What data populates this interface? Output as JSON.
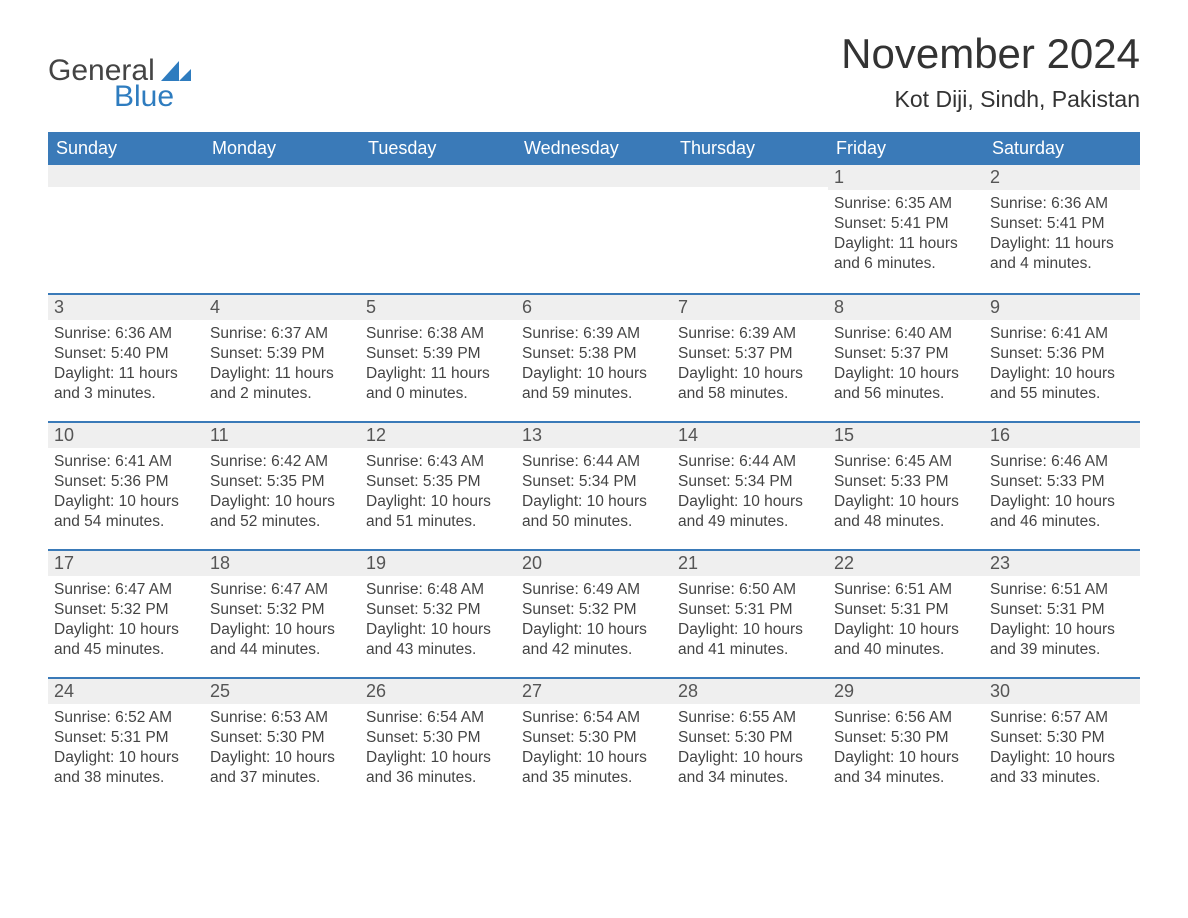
{
  "logo": {
    "general": "General",
    "blue": "Blue",
    "shape_color": "#2e7cbf"
  },
  "title": "November 2024",
  "location": "Kot Diji, Sindh, Pakistan",
  "colors": {
    "header_bg": "#3a7ab8",
    "header_text": "#ffffff",
    "daynum_bg": "#efefef",
    "border_top": "#3a7ab8",
    "body_text": "#444444",
    "title_text": "#333333"
  },
  "weekdays": [
    "Sunday",
    "Monday",
    "Tuesday",
    "Wednesday",
    "Thursday",
    "Friday",
    "Saturday"
  ],
  "weeks": [
    [
      null,
      null,
      null,
      null,
      null,
      {
        "n": "1",
        "sunrise": "6:35 AM",
        "sunset": "5:41 PM",
        "daylight": "11 hours and 6 minutes."
      },
      {
        "n": "2",
        "sunrise": "6:36 AM",
        "sunset": "5:41 PM",
        "daylight": "11 hours and 4 minutes."
      }
    ],
    [
      {
        "n": "3",
        "sunrise": "6:36 AM",
        "sunset": "5:40 PM",
        "daylight": "11 hours and 3 minutes."
      },
      {
        "n": "4",
        "sunrise": "6:37 AM",
        "sunset": "5:39 PM",
        "daylight": "11 hours and 2 minutes."
      },
      {
        "n": "5",
        "sunrise": "6:38 AM",
        "sunset": "5:39 PM",
        "daylight": "11 hours and 0 minutes."
      },
      {
        "n": "6",
        "sunrise": "6:39 AM",
        "sunset": "5:38 PM",
        "daylight": "10 hours and 59 minutes."
      },
      {
        "n": "7",
        "sunrise": "6:39 AM",
        "sunset": "5:37 PM",
        "daylight": "10 hours and 58 minutes."
      },
      {
        "n": "8",
        "sunrise": "6:40 AM",
        "sunset": "5:37 PM",
        "daylight": "10 hours and 56 minutes."
      },
      {
        "n": "9",
        "sunrise": "6:41 AM",
        "sunset": "5:36 PM",
        "daylight": "10 hours and 55 minutes."
      }
    ],
    [
      {
        "n": "10",
        "sunrise": "6:41 AM",
        "sunset": "5:36 PM",
        "daylight": "10 hours and 54 minutes."
      },
      {
        "n": "11",
        "sunrise": "6:42 AM",
        "sunset": "5:35 PM",
        "daylight": "10 hours and 52 minutes."
      },
      {
        "n": "12",
        "sunrise": "6:43 AM",
        "sunset": "5:35 PM",
        "daylight": "10 hours and 51 minutes."
      },
      {
        "n": "13",
        "sunrise": "6:44 AM",
        "sunset": "5:34 PM",
        "daylight": "10 hours and 50 minutes."
      },
      {
        "n": "14",
        "sunrise": "6:44 AM",
        "sunset": "5:34 PM",
        "daylight": "10 hours and 49 minutes."
      },
      {
        "n": "15",
        "sunrise": "6:45 AM",
        "sunset": "5:33 PM",
        "daylight": "10 hours and 48 minutes."
      },
      {
        "n": "16",
        "sunrise": "6:46 AM",
        "sunset": "5:33 PM",
        "daylight": "10 hours and 46 minutes."
      }
    ],
    [
      {
        "n": "17",
        "sunrise": "6:47 AM",
        "sunset": "5:32 PM",
        "daylight": "10 hours and 45 minutes."
      },
      {
        "n": "18",
        "sunrise": "6:47 AM",
        "sunset": "5:32 PM",
        "daylight": "10 hours and 44 minutes."
      },
      {
        "n": "19",
        "sunrise": "6:48 AM",
        "sunset": "5:32 PM",
        "daylight": "10 hours and 43 minutes."
      },
      {
        "n": "20",
        "sunrise": "6:49 AM",
        "sunset": "5:32 PM",
        "daylight": "10 hours and 42 minutes."
      },
      {
        "n": "21",
        "sunrise": "6:50 AM",
        "sunset": "5:31 PM",
        "daylight": "10 hours and 41 minutes."
      },
      {
        "n": "22",
        "sunrise": "6:51 AM",
        "sunset": "5:31 PM",
        "daylight": "10 hours and 40 minutes."
      },
      {
        "n": "23",
        "sunrise": "6:51 AM",
        "sunset": "5:31 PM",
        "daylight": "10 hours and 39 minutes."
      }
    ],
    [
      {
        "n": "24",
        "sunrise": "6:52 AM",
        "sunset": "5:31 PM",
        "daylight": "10 hours and 38 minutes."
      },
      {
        "n": "25",
        "sunrise": "6:53 AM",
        "sunset": "5:30 PM",
        "daylight": "10 hours and 37 minutes."
      },
      {
        "n": "26",
        "sunrise": "6:54 AM",
        "sunset": "5:30 PM",
        "daylight": "10 hours and 36 minutes."
      },
      {
        "n": "27",
        "sunrise": "6:54 AM",
        "sunset": "5:30 PM",
        "daylight": "10 hours and 35 minutes."
      },
      {
        "n": "28",
        "sunrise": "6:55 AM",
        "sunset": "5:30 PM",
        "daylight": "10 hours and 34 minutes."
      },
      {
        "n": "29",
        "sunrise": "6:56 AM",
        "sunset": "5:30 PM",
        "daylight": "10 hours and 34 minutes."
      },
      {
        "n": "30",
        "sunrise": "6:57 AM",
        "sunset": "5:30 PM",
        "daylight": "10 hours and 33 minutes."
      }
    ]
  ],
  "labels": {
    "sunrise_prefix": "Sunrise: ",
    "sunset_prefix": "Sunset: ",
    "daylight_prefix": "Daylight: "
  }
}
